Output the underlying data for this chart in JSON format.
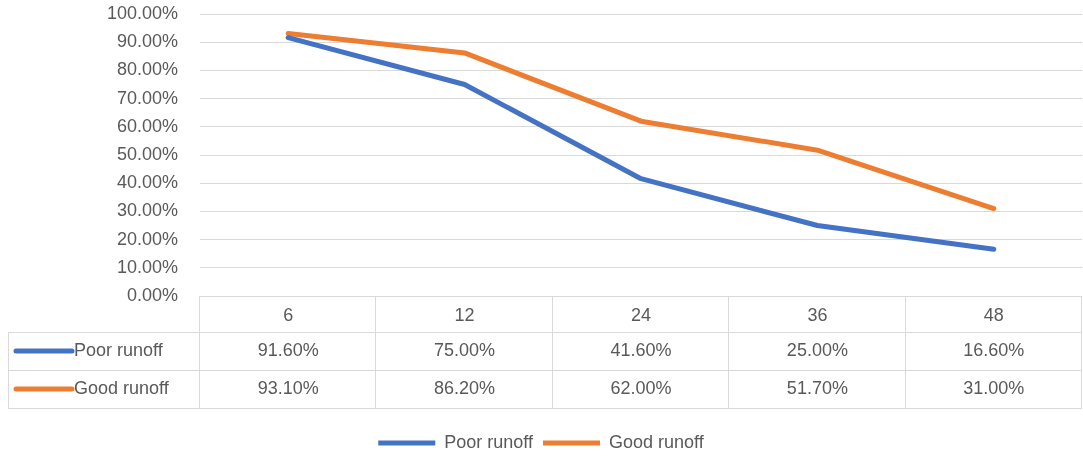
{
  "chart_data": {
    "type": "line",
    "categories": [
      "6",
      "12",
      "24",
      "36",
      "48"
    ],
    "series": [
      {
        "name": "Poor runoff",
        "color": "#4472c4",
        "values": [
          91.6,
          75,
          41.6,
          25,
          16.6
        ],
        "value_labels": [
          "91.60%",
          "75.00%",
          "41.60%",
          "25.00%",
          "16.60%"
        ]
      },
      {
        "name": "Good runoff",
        "color": "#ed7d31",
        "values": [
          93.1,
          86.2,
          62,
          51.7,
          31
        ],
        "value_labels": [
          "93.10%",
          "86.20%",
          "62.00%",
          "51.70%",
          "31.00%"
        ]
      }
    ],
    "ylim": [
      0,
      100
    ],
    "yticks": [
      {
        "value": 0,
        "label": "0.00%"
      },
      {
        "value": 10,
        "label": "10.00%"
      },
      {
        "value": 20,
        "label": "20.00%"
      },
      {
        "value": 30,
        "label": "30.00%"
      },
      {
        "value": 40,
        "label": "40.00%"
      },
      {
        "value": 50,
        "label": "50.00%"
      },
      {
        "value": 60,
        "label": "60.00%"
      },
      {
        "value": 70,
        "label": "70.00%"
      },
      {
        "value": 80,
        "label": "80.00%"
      },
      {
        "value": 90,
        "label": "90.00%"
      },
      {
        "value": 100,
        "label": "100.00%"
      }
    ],
    "grid": "y",
    "legend": "bottom",
    "marker": "none",
    "line_style": "solid"
  }
}
